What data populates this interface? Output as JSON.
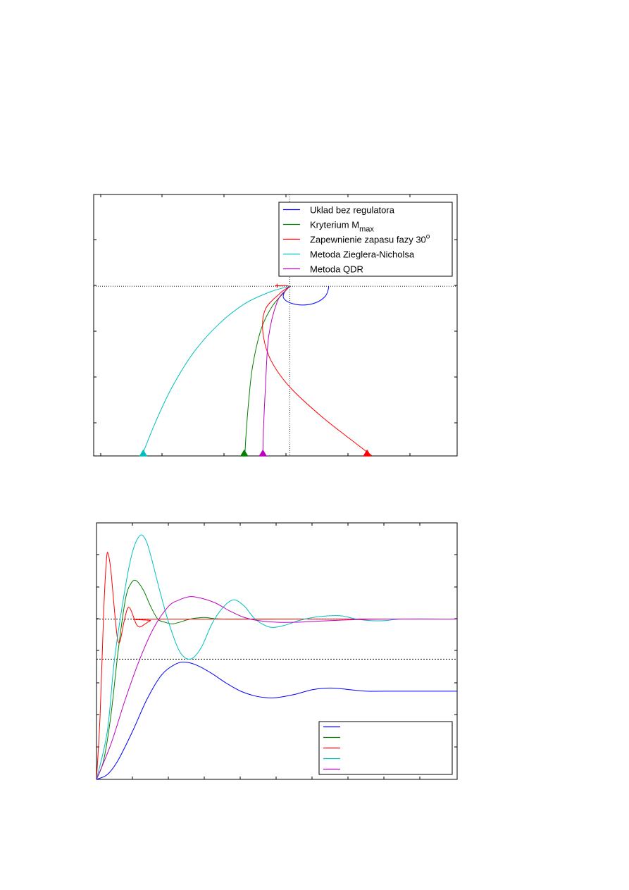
{
  "colors": {
    "blue": "#0000ff",
    "green": "#008000",
    "red": "#ff0000",
    "cyan": "#00bfbf",
    "magenta": "#bf00bf"
  },
  "chart_data": [
    {
      "type": "line",
      "xlim": [
        -3.05,
        2.6
      ],
      "ylim": [
        -3.7,
        2.0
      ],
      "grid": false,
      "legend_position": "top-right",
      "legend": [
        {
          "text": "Uklad bez regulatora",
          "color": "#0000ff"
        },
        {
          "text": "Kryterium M",
          "sub": "max",
          "color": "#008000"
        },
        {
          "text": "Zapewnienie zapasu fazy 30",
          "sup": "o",
          "color": "#ff0000"
        },
        {
          "text": "Metoda Zieglera-Nicholsa",
          "color": "#00bfbf"
        },
        {
          "text": "Metoda QDR",
          "color": "#bf00bf"
        }
      ],
      "series": [
        {
          "color": "#0000ff",
          "points": [
            [
              0,
              0
            ],
            [
              -0.08,
              -0.12
            ],
            [
              -0.1,
              -0.25
            ],
            [
              0,
              -0.36
            ],
            [
              0.2,
              -0.41
            ],
            [
              0.4,
              -0.36
            ],
            [
              0.55,
              -0.22
            ],
            [
              0.6,
              -0.05
            ],
            [
              0.6,
              0
            ]
          ]
        },
        {
          "color": "#008000",
          "points": [
            [
              0,
              0
            ],
            [
              -0.08,
              -0.12
            ],
            [
              -0.28,
              -0.45
            ],
            [
              -0.45,
              -0.95
            ],
            [
              -0.58,
              -1.75
            ],
            [
              -0.64,
              -2.5
            ],
            [
              -0.68,
              -3.2
            ],
            [
              -0.7,
              -3.7
            ]
          ],
          "arrow": [
            -0.71,
            -3.68
          ]
        },
        {
          "color": "#ff0000",
          "points": [
            [
              -0.2,
              0.01
            ],
            [
              -0.02,
              0
            ],
            [
              -0.15,
              -0.15
            ],
            [
              -0.38,
              -0.5
            ],
            [
              -0.42,
              -1.0
            ],
            [
              -0.3,
              -1.6
            ],
            [
              0,
              -2.2
            ],
            [
              0.5,
              -2.85
            ],
            [
              1.0,
              -3.4
            ],
            [
              1.28,
              -3.7
            ]
          ],
          "arrow": [
            1.2,
            -3.68
          ],
          "marker": [
            -0.2,
            0.01
          ]
        },
        {
          "color": "#00bfbf",
          "points": [
            [
              0,
              0
            ],
            [
              -0.3,
              -0.12
            ],
            [
              -0.7,
              -0.38
            ],
            [
              -1.1,
              -0.82
            ],
            [
              -1.5,
              -1.45
            ],
            [
              -1.85,
              -2.25
            ],
            [
              -2.1,
              -3.0
            ],
            [
              -2.3,
              -3.7
            ]
          ],
          "arrow": [
            -2.28,
            -3.68
          ]
        },
        {
          "color": "#bf00bf",
          "points": [
            [
              0,
              0
            ],
            [
              -0.06,
              -0.08
            ],
            [
              -0.2,
              -0.35
            ],
            [
              -0.33,
              -1.1
            ],
            [
              -0.38,
              -2.2
            ],
            [
              -0.41,
              -3.1
            ],
            [
              -0.42,
              -3.7
            ]
          ],
          "arrow": [
            -0.42,
            -3.68
          ]
        }
      ]
    },
    {
      "type": "line",
      "xlim": [
        0,
        10
      ],
      "ylim": [
        0,
        1.6
      ],
      "grid": false,
      "legend_position": "bottom-right",
      "reference_lines": [
        1.0,
        0.75
      ],
      "series": [
        {
          "color": "#0000ff",
          "points": [
            [
              0,
              0
            ],
            [
              0.3,
              0.03
            ],
            [
              0.6,
              0.12
            ],
            [
              1.0,
              0.3
            ],
            [
              1.4,
              0.5
            ],
            [
              1.8,
              0.65
            ],
            [
              2.2,
              0.72
            ],
            [
              2.5,
              0.73
            ],
            [
              2.8,
              0.71
            ],
            [
              3.2,
              0.66
            ],
            [
              3.6,
              0.6
            ],
            [
              4.0,
              0.55
            ],
            [
              4.4,
              0.52
            ],
            [
              4.7,
              0.51
            ],
            [
              5.0,
              0.51
            ],
            [
              5.5,
              0.53
            ],
            [
              6.0,
              0.56
            ],
            [
              6.5,
              0.57
            ],
            [
              7.0,
              0.56
            ],
            [
              7.5,
              0.55
            ],
            [
              8.0,
              0.55
            ],
            [
              10.0,
              0.55
            ]
          ]
        },
        {
          "color": "#008000",
          "points": [
            [
              0,
              0
            ],
            [
              0.2,
              0.12
            ],
            [
              0.4,
              0.4
            ],
            [
              0.6,
              0.8
            ],
            [
              0.8,
              1.12
            ],
            [
              0.95,
              1.22
            ],
            [
              1.1,
              1.24
            ],
            [
              1.3,
              1.18
            ],
            [
              1.5,
              1.08
            ],
            [
              1.7,
              1.0
            ],
            [
              1.9,
              0.98
            ],
            [
              2.1,
              0.97
            ],
            [
              2.3,
              0.98
            ],
            [
              2.6,
              1.0
            ],
            [
              3.0,
              1.01
            ],
            [
              3.5,
              1.0
            ],
            [
              5.5,
              1.0
            ]
          ]
        },
        {
          "color": "#ff0000",
          "points": [
            [
              0,
              0
            ],
            [
              0.1,
              0.4
            ],
            [
              0.2,
              1.05
            ],
            [
              0.28,
              1.38
            ],
            [
              0.33,
              1.4
            ],
            [
              0.4,
              1.3
            ],
            [
              0.5,
              1.05
            ],
            [
              0.58,
              0.88
            ],
            [
              0.65,
              0.86
            ],
            [
              0.75,
              0.97
            ],
            [
              0.85,
              1.06
            ],
            [
              0.92,
              1.07
            ],
            [
              1.0,
              1.03
            ],
            [
              1.1,
              0.97
            ],
            [
              1.2,
              0.95
            ],
            [
              1.35,
              0.97
            ],
            [
              1.5,
              0.99
            ],
            [
              1.7,
              1.0
            ],
            [
              10.0,
              1.0
            ]
          ]
        },
        {
          "color": "#00bfbf",
          "points": [
            [
              0,
              0
            ],
            [
              0.3,
              0.3
            ],
            [
              0.5,
              0.75
            ],
            [
              0.8,
              1.2
            ],
            [
              1.0,
              1.42
            ],
            [
              1.2,
              1.52
            ],
            [
              1.35,
              1.5
            ],
            [
              1.5,
              1.4
            ],
            [
              1.75,
              1.18
            ],
            [
              2.0,
              0.98
            ],
            [
              2.3,
              0.8
            ],
            [
              2.6,
              0.75
            ],
            [
              2.9,
              0.82
            ],
            [
              3.2,
              0.97
            ],
            [
              3.5,
              1.07
            ],
            [
              3.8,
              1.12
            ],
            [
              4.1,
              1.08
            ],
            [
              4.4,
              1.0
            ],
            [
              4.8,
              0.95
            ],
            [
              5.2,
              0.96
            ],
            [
              5.6,
              0.99
            ],
            [
              6.0,
              1.01
            ],
            [
              6.4,
              1.02
            ],
            [
              6.8,
              1.02
            ],
            [
              7.2,
              1.0
            ],
            [
              7.6,
              0.99
            ],
            [
              8.0,
              0.99
            ],
            [
              8.5,
              1.0
            ],
            [
              10.0,
              1.0
            ]
          ]
        },
        {
          "color": "#bf00bf",
          "points": [
            [
              0,
              0
            ],
            [
              0.4,
              0.22
            ],
            [
              0.8,
              0.5
            ],
            [
              1.2,
              0.75
            ],
            [
              1.6,
              0.95
            ],
            [
              2.0,
              1.08
            ],
            [
              2.3,
              1.12
            ],
            [
              2.6,
              1.14
            ],
            [
              2.9,
              1.13
            ],
            [
              3.3,
              1.1
            ],
            [
              3.7,
              1.05
            ],
            [
              4.1,
              1.01
            ],
            [
              4.5,
              0.99
            ],
            [
              5.0,
              0.98
            ],
            [
              5.5,
              0.98
            ],
            [
              6.0,
              0.985
            ],
            [
              7.0,
              0.995
            ],
            [
              8.0,
              1.0
            ],
            [
              10.0,
              1.0
            ]
          ]
        }
      ],
      "legend": [
        {
          "color": "#0000ff"
        },
        {
          "color": "#008000"
        },
        {
          "color": "#ff0000"
        },
        {
          "color": "#00bfbf"
        },
        {
          "color": "#bf00bf"
        }
      ]
    }
  ]
}
